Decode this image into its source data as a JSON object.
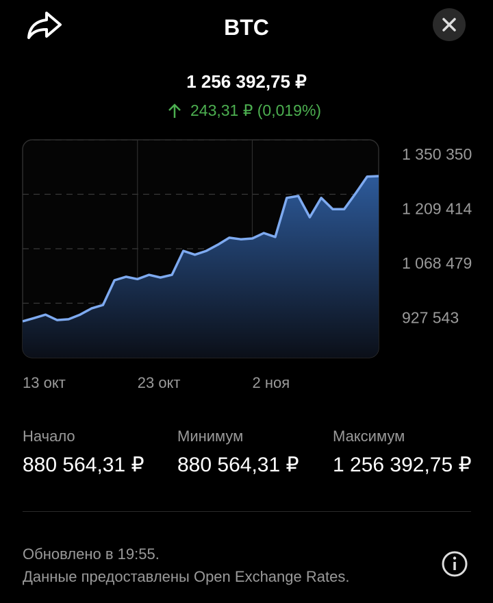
{
  "header": {
    "title": "BTC"
  },
  "price": "1 256 392,75 ₽",
  "change": "243,31 ₽ (0,019%)",
  "chart_data": {
    "type": "area",
    "categories": [
      "13 окт",
      null,
      null,
      null,
      null,
      null,
      null,
      null,
      null,
      null,
      "23 окт",
      null,
      null,
      null,
      null,
      null,
      null,
      null,
      null,
      null,
      "2 ноя",
      null,
      null,
      null,
      null,
      null,
      null,
      null,
      null,
      null,
      null,
      null
    ],
    "values": [
      880564.31,
      889000,
      898000,
      884000,
      886000,
      898000,
      914000,
      923000,
      987000,
      996000,
      990000,
      1001000,
      994000,
      1001000,
      1063000,
      1053000,
      1063000,
      1079000,
      1097000,
      1093000,
      1095000,
      1109000,
      1099000,
      1200000,
      1205000,
      1150000,
      1200000,
      1171000,
      1171000,
      1212000,
      1255000,
      1256392.75
    ],
    "color": "#7eaaf0",
    "ylim": [
      786607,
      1350350
    ],
    "yticks": [
      {
        "value": 1350350,
        "label": "1 350 350"
      },
      {
        "value": 1209414,
        "label": "1 209 414"
      },
      {
        "value": 1068479,
        "label": "1 068 479"
      },
      {
        "value": 927543,
        "label": "927 543"
      }
    ],
    "grid": true
  },
  "stats": [
    {
      "label": "Начало",
      "value": "880 564,31 ₽"
    },
    {
      "label": "Минимум",
      "value": "880 564,31 ₽"
    },
    {
      "label": "Максимум",
      "value": "1 256 392,75 ₽"
    }
  ],
  "footer": {
    "updated": "Обновлено в 19:55.",
    "source": "Данные предоставлены Open Exchange Rates."
  }
}
